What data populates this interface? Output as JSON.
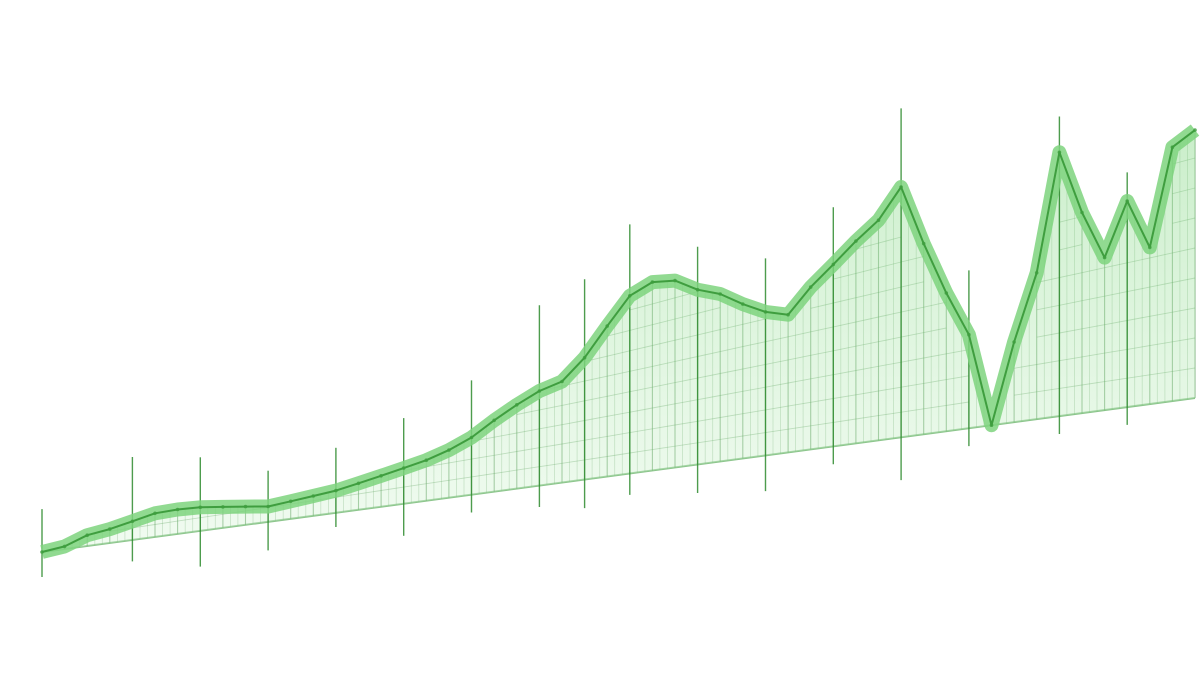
{
  "chart_data": {
    "type": "area",
    "title": "",
    "xlabel": "",
    "ylabel": "",
    "axes_visible": false,
    "grid": true,
    "legend": "none",
    "series": [
      {
        "color": "#5cbf5c",
        "outline_color": "#3f9e3f",
        "fill_color": "#7ed37e",
        "values": [
          0,
          2,
          8,
          10,
          13,
          16,
          16,
          15,
          13,
          11,
          9,
          10,
          11,
          12,
          14,
          16,
          18,
          20,
          23,
          27,
          33,
          38,
          42,
          44,
          52,
          63,
          73,
          76,
          74,
          68,
          64,
          58,
          53,
          50,
          58,
          64,
          70,
          75,
          84,
          63,
          45,
          30,
          0,
          25,
          45,
          80,
          60,
          45,
          60,
          45,
          72,
          75
        ]
      }
    ],
    "spikes": [
      {
        "i": 0,
        "up": 12,
        "down": 7
      },
      {
        "i": 4,
        "up": 18,
        "down": 6
      },
      {
        "i": 7,
        "up": 14,
        "down": 10
      },
      {
        "i": 10,
        "up": 10,
        "down": 8
      },
      {
        "i": 13,
        "up": 12,
        "down": 4
      },
      {
        "i": 16,
        "up": 14,
        "down": 9
      },
      {
        "i": 19,
        "up": 16,
        "down": 5
      },
      {
        "i": 22,
        "up": 24,
        "down": 6
      },
      {
        "i": 24,
        "up": 22,
        "down": 8
      },
      {
        "i": 26,
        "up": 20,
        "down": 6
      },
      {
        "i": 29,
        "up": 12,
        "down": 8
      },
      {
        "i": 32,
        "up": 15,
        "down": 10
      },
      {
        "i": 35,
        "up": 16,
        "down": 5
      },
      {
        "i": 38,
        "up": 22,
        "down": 12
      },
      {
        "i": 41,
        "up": 18,
        "down": 5
      },
      {
        "i": 45,
        "up": 10,
        "down": 5
      },
      {
        "i": 48,
        "up": 8,
        "down": 5
      }
    ]
  }
}
